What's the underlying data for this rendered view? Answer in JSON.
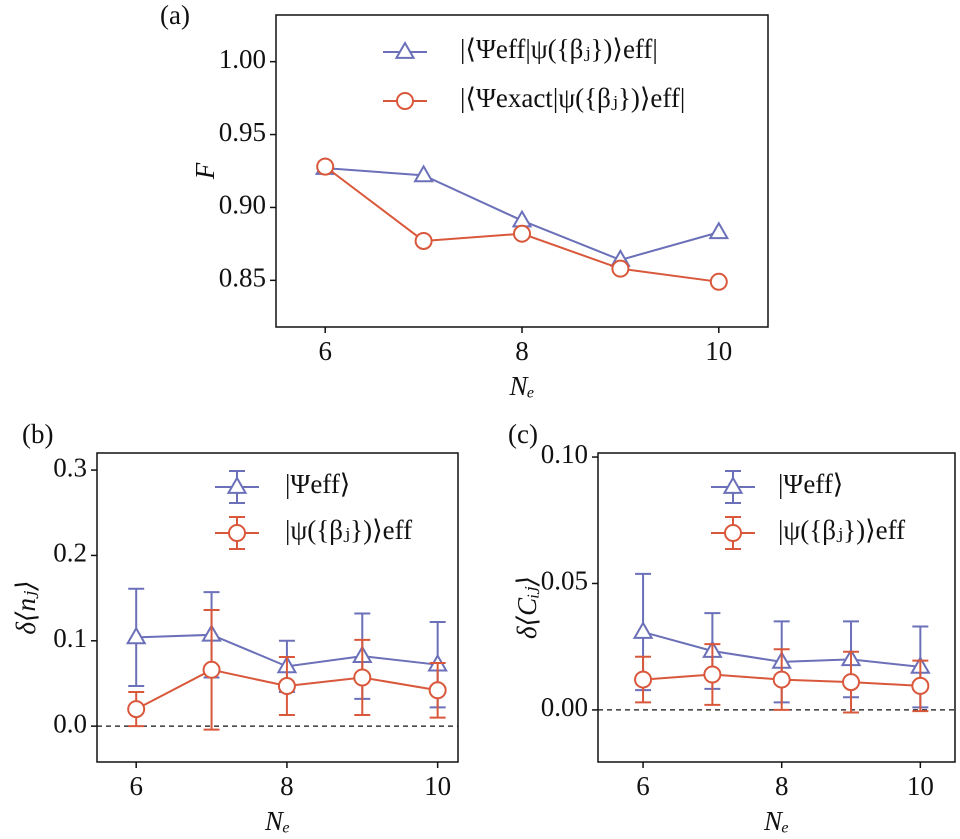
{
  "chart_data": [
    {
      "type": "line",
      "panel_label": "(a)",
      "x_label": "Nₑ",
      "y_label": "F",
      "x": [
        6,
        7,
        8,
        9,
        10
      ],
      "series": [
        {
          "name": "|⟨Ψeff|ψ({βⱼ})⟩eff|",
          "color": "#6b70b8",
          "marker": "triangle",
          "values": [
            0.927,
            0.922,
            0.891,
            0.864,
            0.883
          ]
        },
        {
          "name": "|⟨Ψexact|ψ({βⱼ})⟩eff|",
          "color": "#d9583b",
          "marker": "circle",
          "values": [
            0.928,
            0.877,
            0.882,
            0.858,
            0.849
          ]
        }
      ],
      "xlim": [
        5.5,
        10.5
      ],
      "ylim": [
        0.818,
        1.032
      ],
      "xticks": [
        6,
        8,
        10
      ],
      "yticks": [
        {
          "value": 0.85,
          "label": "0.85"
        },
        {
          "value": 0.9,
          "label": "0.90"
        },
        {
          "value": 0.95,
          "label": "0.95"
        },
        {
          "value": 1,
          "label": "1.00"
        }
      ]
    },
    {
      "type": "errorbar",
      "panel_label": "(b)",
      "x_label": "Nₑ",
      "y_label": "δ⟨nⱼ⟩",
      "x": [
        6,
        7,
        8,
        9,
        10
      ],
      "series": [
        {
          "name": "|Ψeff⟩",
          "color": "#6b70b8",
          "marker": "triangle",
          "values": [
            0.104,
            0.107,
            0.07,
            0.082,
            0.072
          ],
          "errors": [
            0.057,
            0.05,
            0.03,
            0.05,
            0.05
          ]
        },
        {
          "name": "|ψ({βⱼ})⟩eff",
          "color": "#d9583b",
          "marker": "circle",
          "values": [
            0.02,
            0.066,
            0.047,
            0.057,
            0.042
          ],
          "errors": [
            0.02,
            0.07,
            0.034,
            0.044,
            0.032
          ]
        }
      ],
      "reference_line": 0,
      "xlim": [
        5.48,
        10.27
      ],
      "ylim": [
        -0.042,
        0.32
      ],
      "xticks": [
        6,
        8,
        10
      ],
      "yticks": [
        {
          "value": 0,
          "label": "0.0"
        },
        0.1,
        0.2,
        0.3
      ]
    },
    {
      "type": "errorbar",
      "panel_label": "(c)",
      "x_label": "Nₑ",
      "y_label": "δ⟨Cᵢⱼ⟩",
      "x": [
        6,
        7,
        8,
        9,
        10
      ],
      "series": [
        {
          "name": "|Ψeff⟩",
          "color": "#6b70b8",
          "marker": "triangle",
          "values": [
            0.0308,
            0.0233,
            0.019,
            0.02,
            0.017
          ],
          "errors": [
            0.023,
            0.015,
            0.016,
            0.015,
            0.016
          ]
        },
        {
          "name": "|ψ({βⱼ})⟩eff",
          "color": "#d9583b",
          "marker": "circle",
          "values": [
            0.012,
            0.014,
            0.012,
            0.011,
            0.0095
          ],
          "errors": [
            0.009,
            0.012,
            0.012,
            0.012,
            0.01
          ]
        }
      ],
      "reference_line": 0,
      "xlim": [
        5.35,
        10.5
      ],
      "ylim": [
        -0.0206,
        0.1016
      ],
      "xticks": [
        6,
        8,
        10
      ],
      "yticks": [
        {
          "value": 0,
          "label": "0.00"
        },
        {
          "value": 0.05,
          "label": "0.05"
        },
        {
          "value": 0.1,
          "label": "0.10"
        }
      ]
    }
  ]
}
